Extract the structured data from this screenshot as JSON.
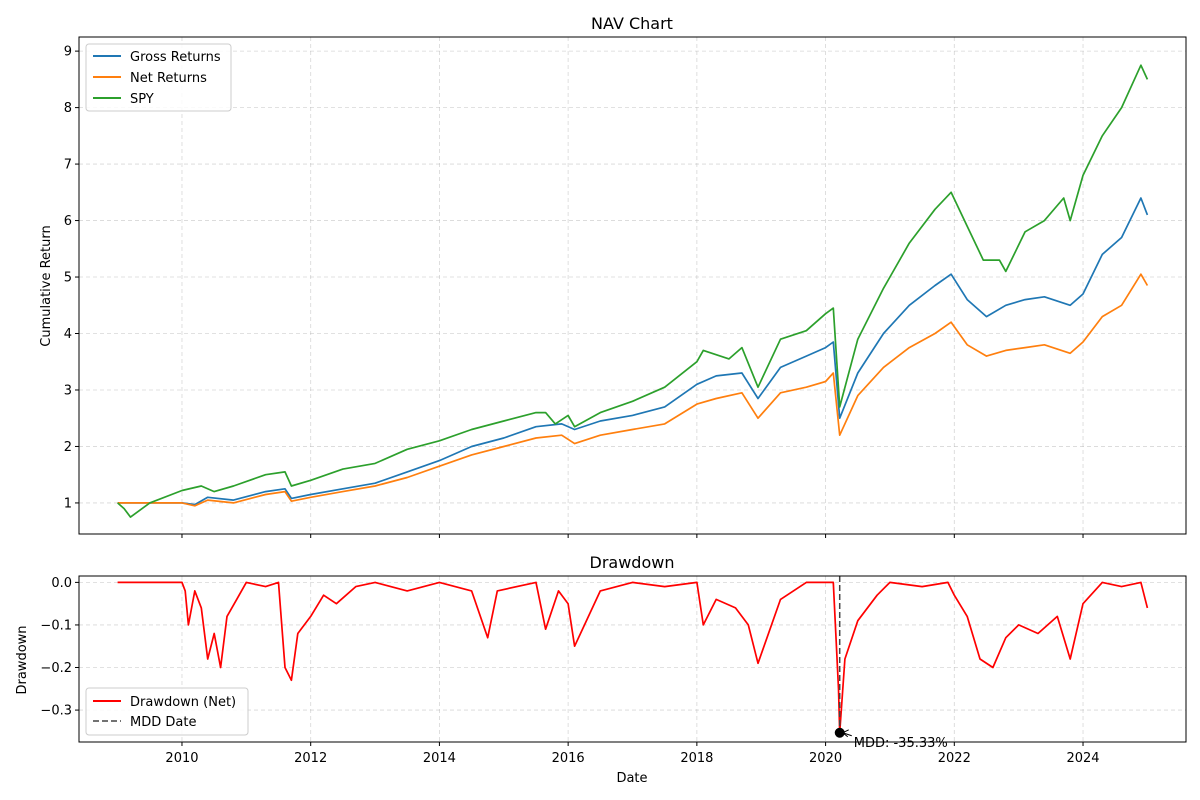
{
  "chart_data": [
    {
      "type": "line",
      "title": "NAV Chart",
      "xlabel": "",
      "ylabel": "Cumulative Return",
      "xlim": [
        2008.4,
        2025.6
      ],
      "ylim": [
        0.45,
        9.25
      ],
      "xticks": [
        2010,
        2012,
        2014,
        2016,
        2018,
        2020,
        2022,
        2024
      ],
      "xtick_labels": [
        "",
        "",
        "",
        "",
        "",
        "",
        "",
        ""
      ],
      "yticks": [
        1,
        2,
        3,
        4,
        5,
        6,
        7,
        8,
        9
      ],
      "ytick_labels": [
        "1",
        "2",
        "3",
        "4",
        "5",
        "6",
        "7",
        "8",
        "9"
      ],
      "grid": true,
      "legend_position": "top-left",
      "series": [
        {
          "name": "Gross Returns",
          "color": "#1f77b4",
          "x": [
            2009.0,
            2009.5,
            2010.0,
            2010.2,
            2010.4,
            2010.8,
            2011.3,
            2011.6,
            2011.7,
            2012.0,
            2012.5,
            2013.0,
            2013.5,
            2014.0,
            2014.5,
            2015.0,
            2015.5,
            2015.9,
            2016.1,
            2016.5,
            2017.0,
            2017.5,
            2018.0,
            2018.3,
            2018.7,
            2018.95,
            2019.3,
            2019.7,
            2020.0,
            2020.12,
            2020.22,
            2020.5,
            2020.9,
            2021.3,
            2021.7,
            2021.95,
            2022.2,
            2022.5,
            2022.8,
            2023.1,
            2023.4,
            2023.8,
            2024.0,
            2024.3,
            2024.6,
            2024.9,
            2025.0
          ],
          "values": [
            1.0,
            1.0,
            1.0,
            0.97,
            1.1,
            1.05,
            1.2,
            1.25,
            1.08,
            1.15,
            1.25,
            1.35,
            1.55,
            1.75,
            2.0,
            2.15,
            2.35,
            2.4,
            2.3,
            2.45,
            2.55,
            2.7,
            3.1,
            3.25,
            3.3,
            2.85,
            3.4,
            3.6,
            3.75,
            3.85,
            2.5,
            3.3,
            4.0,
            4.5,
            4.85,
            5.05,
            4.6,
            4.3,
            4.5,
            4.6,
            4.65,
            4.5,
            4.7,
            5.4,
            5.7,
            6.4,
            6.1
          ]
        },
        {
          "name": "Net Returns",
          "color": "#ff7f0e",
          "x": [
            2009.0,
            2009.5,
            2010.0,
            2010.2,
            2010.4,
            2010.8,
            2011.3,
            2011.6,
            2011.7,
            2012.0,
            2012.5,
            2013.0,
            2013.5,
            2014.0,
            2014.5,
            2015.0,
            2015.5,
            2015.9,
            2016.1,
            2016.5,
            2017.0,
            2017.5,
            2018.0,
            2018.3,
            2018.7,
            2018.95,
            2019.3,
            2019.7,
            2020.0,
            2020.12,
            2020.22,
            2020.5,
            2020.9,
            2021.3,
            2021.7,
            2021.95,
            2022.2,
            2022.5,
            2022.8,
            2023.1,
            2023.4,
            2023.8,
            2024.0,
            2024.3,
            2024.6,
            2024.9,
            2025.0
          ],
          "values": [
            1.0,
            1.0,
            1.0,
            0.95,
            1.05,
            1.0,
            1.15,
            1.2,
            1.03,
            1.1,
            1.2,
            1.3,
            1.45,
            1.65,
            1.85,
            2.0,
            2.15,
            2.2,
            2.05,
            2.2,
            2.3,
            2.4,
            2.75,
            2.85,
            2.95,
            2.5,
            2.95,
            3.05,
            3.15,
            3.3,
            2.2,
            2.9,
            3.4,
            3.75,
            4.0,
            4.2,
            3.8,
            3.6,
            3.7,
            3.75,
            3.8,
            3.65,
            3.85,
            4.3,
            4.5,
            5.05,
            4.85
          ]
        },
        {
          "name": "SPY",
          "color": "#2ca02c",
          "x": [
            2009.0,
            2009.1,
            2009.2,
            2009.5,
            2010.0,
            2010.3,
            2010.5,
            2010.8,
            2011.3,
            2011.6,
            2011.7,
            2012.0,
            2012.5,
            2013.0,
            2013.5,
            2014.0,
            2014.5,
            2015.0,
            2015.5,
            2015.65,
            2015.8,
            2016.0,
            2016.1,
            2016.5,
            2017.0,
            2017.5,
            2018.0,
            2018.1,
            2018.5,
            2018.7,
            2018.95,
            2019.3,
            2019.7,
            2020.0,
            2020.12,
            2020.22,
            2020.5,
            2020.9,
            2021.3,
            2021.7,
            2021.95,
            2022.2,
            2022.45,
            2022.7,
            2022.8,
            2023.1,
            2023.4,
            2023.7,
            2023.8,
            2024.0,
            2024.3,
            2024.6,
            2024.9,
            2025.0
          ],
          "values": [
            1.0,
            0.9,
            0.75,
            1.0,
            1.22,
            1.3,
            1.2,
            1.3,
            1.5,
            1.55,
            1.3,
            1.4,
            1.6,
            1.7,
            1.95,
            2.1,
            2.3,
            2.45,
            2.6,
            2.6,
            2.4,
            2.55,
            2.35,
            2.6,
            2.8,
            3.05,
            3.5,
            3.7,
            3.55,
            3.75,
            3.05,
            3.9,
            4.05,
            4.35,
            4.45,
            2.7,
            3.9,
            4.8,
            5.6,
            6.2,
            6.5,
            5.9,
            5.3,
            5.3,
            5.1,
            5.8,
            6.0,
            6.4,
            6.0,
            6.8,
            7.5,
            8.0,
            8.75,
            8.5
          ]
        }
      ]
    },
    {
      "type": "line",
      "title": "Drawdown",
      "xlabel": "Date",
      "ylabel": "Drawdown",
      "xlim": [
        2008.4,
        2025.6
      ],
      "ylim": [
        -0.375,
        0.015
      ],
      "xticks": [
        2010,
        2012,
        2014,
        2016,
        2018,
        2020,
        2022,
        2024
      ],
      "xtick_labels": [
        "2010",
        "2012",
        "2014",
        "2016",
        "2018",
        "2020",
        "2022",
        "2024"
      ],
      "yticks": [
        0.0,
        -0.1,
        -0.2,
        -0.3
      ],
      "ytick_labels": [
        "0.0",
        "−0.1",
        "−0.2",
        "−0.3"
      ],
      "grid": true,
      "legend_position": "bottom-left",
      "series": [
        {
          "name": "Drawdown (Net)",
          "color": "#ff0000",
          "x": [
            2009.0,
            2009.5,
            2010.0,
            2010.05,
            2010.1,
            2010.2,
            2010.3,
            2010.4,
            2010.5,
            2010.6,
            2010.7,
            2010.85,
            2011.0,
            2011.3,
            2011.5,
            2011.6,
            2011.7,
            2011.8,
            2012.0,
            2012.2,
            2012.4,
            2012.7,
            2013.0,
            2013.5,
            2014.0,
            2014.5,
            2014.75,
            2014.9,
            2015.5,
            2015.65,
            2015.85,
            2016.0,
            2016.1,
            2016.5,
            2017.0,
            2017.5,
            2018.0,
            2018.1,
            2018.3,
            2018.6,
            2018.8,
            2018.95,
            2019.3,
            2019.7,
            2020.0,
            2020.12,
            2020.2,
            2020.22,
            2020.3,
            2020.5,
            2020.8,
            2021.0,
            2021.5,
            2021.9,
            2022.0,
            2022.2,
            2022.4,
            2022.6,
            2022.8,
            2023.0,
            2023.3,
            2023.6,
            2023.8,
            2024.0,
            2024.3,
            2024.6,
            2024.9,
            2025.0
          ],
          "values": [
            0.0,
            0.0,
            0.0,
            -0.02,
            -0.1,
            -0.02,
            -0.06,
            -0.18,
            -0.12,
            -0.2,
            -0.08,
            -0.04,
            0.0,
            -0.01,
            0.0,
            -0.2,
            -0.23,
            -0.12,
            -0.08,
            -0.03,
            -0.05,
            -0.01,
            0.0,
            -0.02,
            0.0,
            -0.02,
            -0.13,
            -0.02,
            0.0,
            -0.11,
            -0.02,
            -0.05,
            -0.15,
            -0.02,
            0.0,
            -0.01,
            0.0,
            -0.1,
            -0.04,
            -0.06,
            -0.1,
            -0.19,
            -0.04,
            0.0,
            0.0,
            0.0,
            -0.25,
            -0.3533,
            -0.18,
            -0.09,
            -0.03,
            0.0,
            -0.01,
            0.0,
            -0.03,
            -0.08,
            -0.18,
            -0.2,
            -0.13,
            -0.1,
            -0.12,
            -0.08,
            -0.18,
            -0.05,
            0.0,
            -0.01,
            0.0,
            -0.06
          ]
        },
        {
          "name": "MDD Date",
          "color": "#000000",
          "x": [
            2020.22,
            2020.22
          ],
          "values": [
            0.015,
            -0.3533
          ]
        }
      ],
      "marker": {
        "x": 2020.22,
        "y": -0.3533
      },
      "annotation": {
        "text": "MDD: -35.33%",
        "x": 2020.22,
        "y": -0.3533
      }
    }
  ]
}
